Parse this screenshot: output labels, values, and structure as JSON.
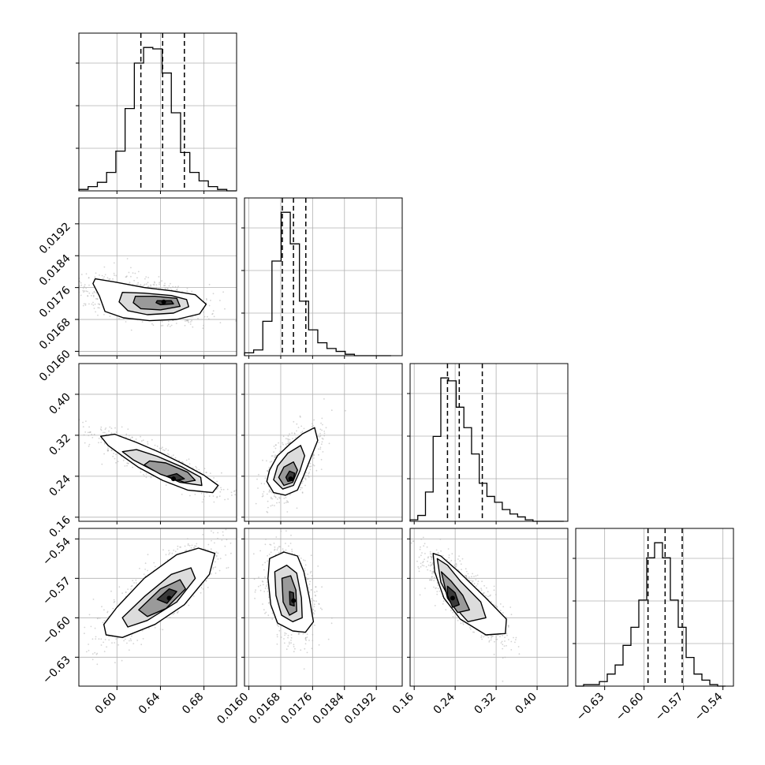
{
  "colors": {
    "background": "#ffffff",
    "frame": "#000000",
    "grid": "#b0b0b0",
    "histogram": "#000000",
    "quantile_line": "#000000",
    "contour": "#000000",
    "scatter_points": "#b0b0b0"
  },
  "chart_data": {
    "type": "corner",
    "params": [
      {
        "key": "p1",
        "range": [
          0.565,
          0.71
        ],
        "ticks": [
          0.6,
          0.64,
          0.68
        ],
        "tick_labels": [
          "0.60",
          "0.64",
          "0.68"
        ],
        "quantiles": [
          0.622,
          0.642,
          0.662
        ],
        "histogram": {
          "edges": [
            0.565,
            0.5735,
            0.582,
            0.5905,
            0.599,
            0.6075,
            0.616,
            0.6245,
            0.633,
            0.6415,
            0.65,
            0.6585,
            0.667,
            0.6755,
            0.684,
            0.6925,
            0.701,
            0.7095
          ],
          "counts": [
            1,
            3,
            6,
            13,
            28,
            58,
            90,
            101,
            100,
            83,
            55,
            27,
            13,
            7,
            3,
            1,
            0
          ]
        }
      },
      {
        "key": "p2",
        "range": [
          0.01589,
          0.01985
        ],
        "ticks": [
          0.016,
          0.0168,
          0.0176,
          0.0184,
          0.0192
        ],
        "tick_labels": [
          "0.0160",
          "0.0168",
          "0.0176",
          "0.0184",
          "0.0192"
        ],
        "quantiles": [
          0.01684,
          0.01712,
          0.01743
        ],
        "histogram": {
          "edges": [
            0.01589,
            0.01612,
            0.01635,
            0.01658,
            0.01681,
            0.01704,
            0.01727,
            0.0175,
            0.01773,
            0.01796,
            0.01819,
            0.01842,
            0.01865,
            0.01888,
            0.01911,
            0.01934,
            0.01957
          ],
          "counts": [
            2,
            4,
            24,
            66,
            100,
            78,
            38,
            18,
            9,
            5,
            3,
            1,
            0,
            0,
            0,
            0
          ]
        }
      },
      {
        "key": "p3",
        "range": [
          0.152,
          0.46
        ],
        "ticks": [
          0.16,
          0.24,
          0.32,
          0.4
        ],
        "tick_labels": [
          "0.16",
          "0.24",
          "0.32",
          "0.40"
        ],
        "quantiles": [
          0.225,
          0.248,
          0.293
        ],
        "histogram": {
          "edges": [
            0.152,
            0.167,
            0.182,
            0.197,
            0.212,
            0.227,
            0.242,
            0.257,
            0.272,
            0.287,
            0.302,
            0.317,
            0.332,
            0.347,
            0.362,
            0.377,
            0.392,
            0.407,
            0.422,
            0.437,
            0.452
          ],
          "counts": [
            1,
            4,
            20,
            58,
            98,
            96,
            78,
            64,
            46,
            26,
            17,
            13,
            8,
            5,
            3,
            1,
            0,
            0,
            0,
            0
          ]
        }
      },
      {
        "key": "p4",
        "range": [
          -0.652,
          -0.532
        ],
        "ticks": [
          -0.63,
          -0.6,
          -0.57,
          -0.54
        ],
        "tick_labels": [
          "−0.63",
          "−0.60",
          "−0.57",
          "−0.54"
        ],
        "quantiles": [
          -0.597,
          -0.584,
          -0.571
        ],
        "histogram": {
          "edges": [
            -0.652,
            -0.646,
            -0.64,
            -0.634,
            -0.628,
            -0.622,
            -0.616,
            -0.61,
            -0.604,
            -0.598,
            -0.592,
            -0.586,
            -0.58,
            -0.574,
            -0.568,
            -0.562,
            -0.556,
            -0.55,
            -0.544,
            -0.538
          ],
          "counts": [
            0,
            1,
            1,
            3,
            8,
            14,
            27,
            39,
            57,
            85,
            95,
            85,
            57,
            39,
            19,
            8,
            4,
            1,
            0
          ]
        }
      }
    ],
    "pairs": [
      {
        "x": "p1",
        "y": "p2",
        "peak": [
          0.643,
          0.01724
        ],
        "contours": [
          [
            [
              0.58,
              0.01782
            ],
            [
              0.598,
              0.01774
            ],
            [
              0.625,
              0.0176
            ],
            [
              0.65,
              0.01752
            ],
            [
              0.672,
              0.01742
            ],
            [
              0.682,
              0.01718
            ],
            [
              0.676,
              0.01694
            ],
            [
              0.655,
              0.0168
            ],
            [
              0.63,
              0.01677
            ],
            [
              0.606,
              0.01684
            ],
            [
              0.589,
              0.017
            ],
            [
              0.584,
              0.01738
            ],
            [
              0.578,
              0.0177
            ]
          ],
          [
            [
              0.605,
              0.01748
            ],
            [
              0.625,
              0.01746
            ],
            [
              0.65,
              0.0174
            ],
            [
              0.664,
              0.0173
            ],
            [
              0.666,
              0.01712
            ],
            [
              0.652,
              0.01696
            ],
            [
              0.628,
              0.01692
            ],
            [
              0.61,
              0.01702
            ],
            [
              0.602,
              0.01724
            ]
          ],
          [
            [
              0.617,
              0.01738
            ],
            [
              0.635,
              0.01738
            ],
            [
              0.655,
              0.01733
            ],
            [
              0.658,
              0.01713
            ],
            [
              0.64,
              0.01704
            ],
            [
              0.622,
              0.01707
            ],
            [
              0.615,
              0.01722
            ]
          ],
          [
            [
              0.637,
              0.01727
            ],
            [
              0.65,
              0.01727
            ],
            [
              0.652,
              0.01719
            ],
            [
              0.64,
              0.01717
            ],
            [
              0.636,
              0.01722
            ]
          ]
        ]
      },
      {
        "x": "p1",
        "y": "p3",
        "peak": [
          0.652,
          0.235
        ],
        "contours": [
          [
            [
              0.585,
              0.318
            ],
            [
              0.592,
              0.3
            ],
            [
              0.606,
              0.278
            ],
            [
              0.62,
              0.257
            ],
            [
              0.642,
              0.232
            ],
            [
              0.665,
              0.213
            ],
            [
              0.688,
              0.208
            ],
            [
              0.693,
              0.222
            ],
            [
              0.68,
              0.242
            ],
            [
              0.66,
              0.265
            ],
            [
              0.64,
              0.286
            ],
            [
              0.618,
              0.306
            ],
            [
              0.598,
              0.322
            ]
          ],
          [
            [
              0.605,
              0.288
            ],
            [
              0.615,
              0.272
            ],
            [
              0.633,
              0.252
            ],
            [
              0.658,
              0.228
            ],
            [
              0.678,
              0.222
            ],
            [
              0.677,
              0.238
            ],
            [
              0.66,
              0.258
            ],
            [
              0.637,
              0.279
            ],
            [
              0.618,
              0.292
            ]
          ],
          [
            [
              0.625,
              0.262
            ],
            [
              0.64,
              0.244
            ],
            [
              0.662,
              0.228
            ],
            [
              0.672,
              0.232
            ],
            [
              0.665,
              0.248
            ],
            [
              0.645,
              0.266
            ],
            [
              0.63,
              0.27
            ]
          ],
          [
            [
              0.646,
              0.24
            ],
            [
              0.655,
              0.232
            ],
            [
              0.662,
              0.235
            ],
            [
              0.655,
              0.245
            ]
          ]
        ]
      },
      {
        "x": "p2",
        "y": "p3",
        "peak": [
          0.01705,
          0.235
        ],
        "contours": [
          [
            [
              0.01645,
              0.23
            ],
            [
              0.01652,
              0.252
            ],
            [
              0.01672,
              0.28
            ],
            [
              0.01702,
              0.302
            ],
            [
              0.01735,
              0.323
            ],
            [
              0.01765,
              0.335
            ],
            [
              0.01773,
              0.31
            ],
            [
              0.01755,
              0.275
            ],
            [
              0.01738,
              0.242
            ],
            [
              0.01722,
              0.213
            ],
            [
              0.01692,
              0.203
            ],
            [
              0.01662,
              0.208
            ]
          ],
          [
            [
              0.01662,
              0.233
            ],
            [
              0.01672,
              0.26
            ],
            [
              0.01698,
              0.285
            ],
            [
              0.0173,
              0.3
            ],
            [
              0.0174,
              0.28
            ],
            [
              0.01728,
              0.25
            ],
            [
              0.01712,
              0.222
            ],
            [
              0.01685,
              0.215
            ]
          ],
          [
            [
              0.01675,
              0.238
            ],
            [
              0.01688,
              0.258
            ],
            [
              0.01712,
              0.268
            ],
            [
              0.01722,
              0.252
            ],
            [
              0.0171,
              0.228
            ],
            [
              0.01688,
              0.222
            ]
          ],
          [
            [
              0.01693,
              0.238
            ],
            [
              0.01702,
              0.25
            ],
            [
              0.01715,
              0.246
            ],
            [
              0.01711,
              0.232
            ],
            [
              0.01698,
              0.23
            ]
          ]
        ]
      },
      {
        "x": "p1",
        "y": "p4",
        "peak": [
          0.648,
          -0.585
        ],
        "contours": [
          [
            [
              0.588,
              -0.605
            ],
            [
              0.6,
              -0.592
            ],
            [
              0.625,
              -0.57
            ],
            [
              0.655,
              -0.552
            ],
            [
              0.675,
              -0.547
            ],
            [
              0.69,
              -0.551
            ],
            [
              0.685,
              -0.567
            ],
            [
              0.662,
              -0.59
            ],
            [
              0.635,
              -0.605
            ],
            [
              0.605,
              -0.615
            ],
            [
              0.59,
              -0.613
            ]
          ],
          [
            [
              0.605,
              -0.6
            ],
            [
              0.625,
              -0.584
            ],
            [
              0.65,
              -0.567
            ],
            [
              0.668,
              -0.562
            ],
            [
              0.672,
              -0.57
            ],
            [
              0.655,
              -0.588
            ],
            [
              0.628,
              -0.602
            ],
            [
              0.61,
              -0.607
            ]
          ],
          [
            [
              0.62,
              -0.594
            ],
            [
              0.64,
              -0.578
            ],
            [
              0.658,
              -0.571
            ],
            [
              0.663,
              -0.578
            ],
            [
              0.645,
              -0.593
            ],
            [
              0.628,
              -0.599
            ]
          ],
          [
            [
              0.637,
              -0.586
            ],
            [
              0.648,
              -0.578
            ],
            [
              0.655,
              -0.58
            ],
            [
              0.646,
              -0.589
            ]
          ]
        ]
      },
      {
        "x": "p2",
        "y": "p4",
        "peak": [
          0.01712,
          -0.587
        ],
        "contours": [
          [
            [
              0.01652,
              -0.555
            ],
            [
              0.01688,
              -0.55
            ],
            [
              0.01722,
              -0.553
            ],
            [
              0.01738,
              -0.565
            ],
            [
              0.01752,
              -0.585
            ],
            [
              0.01762,
              -0.603
            ],
            [
              0.01742,
              -0.611
            ],
            [
              0.0171,
              -0.61
            ],
            [
              0.01672,
              -0.604
            ],
            [
              0.01655,
              -0.59
            ],
            [
              0.01648,
              -0.57
            ]
          ],
          [
            [
              0.01665,
              -0.565
            ],
            [
              0.01695,
              -0.56
            ],
            [
              0.0172,
              -0.566
            ],
            [
              0.01732,
              -0.585
            ],
            [
              0.01734,
              -0.6
            ],
            [
              0.0171,
              -0.603
            ],
            [
              0.01682,
              -0.598
            ],
            [
              0.01668,
              -0.583
            ]
          ],
          [
            [
              0.01683,
              -0.57
            ],
            [
              0.01705,
              -0.568
            ],
            [
              0.01718,
              -0.579
            ],
            [
              0.0172,
              -0.595
            ],
            [
              0.01702,
              -0.598
            ],
            [
              0.01686,
              -0.588
            ]
          ],
          [
            [
              0.01702,
              -0.58
            ],
            [
              0.01712,
              -0.581
            ],
            [
              0.01714,
              -0.591
            ],
            [
              0.01703,
              -0.59
            ]
          ]
        ]
      },
      {
        "x": "p3",
        "y": "p4",
        "peak": [
          0.235,
          -0.585
        ],
        "contours": [
          [
            [
              0.197,
              -0.551
            ],
            [
              0.212,
              -0.553
            ],
            [
              0.25,
              -0.566
            ],
            [
              0.3,
              -0.585
            ],
            [
              0.34,
              -0.601
            ],
            [
              0.338,
              -0.612
            ],
            [
              0.3,
              -0.613
            ],
            [
              0.25,
              -0.601
            ],
            [
              0.218,
              -0.585
            ],
            [
              0.2,
              -0.565
            ]
          ],
          [
            [
              0.205,
              -0.555
            ],
            [
              0.225,
              -0.56
            ],
            [
              0.25,
              -0.572
            ],
            [
              0.29,
              -0.588
            ],
            [
              0.3,
              -0.6
            ],
            [
              0.265,
              -0.603
            ],
            [
              0.235,
              -0.59
            ],
            [
              0.212,
              -0.573
            ]
          ],
          [
            [
              0.213,
              -0.565
            ],
            [
              0.232,
              -0.572
            ],
            [
              0.255,
              -0.583
            ],
            [
              0.268,
              -0.594
            ],
            [
              0.245,
              -0.596
            ],
            [
              0.225,
              -0.585
            ]
          ],
          [
            [
              0.225,
              -0.576
            ],
            [
              0.24,
              -0.581
            ],
            [
              0.248,
              -0.59
            ],
            [
              0.235,
              -0.592
            ],
            [
              0.225,
              -0.583
            ]
          ]
        ]
      }
    ]
  }
}
